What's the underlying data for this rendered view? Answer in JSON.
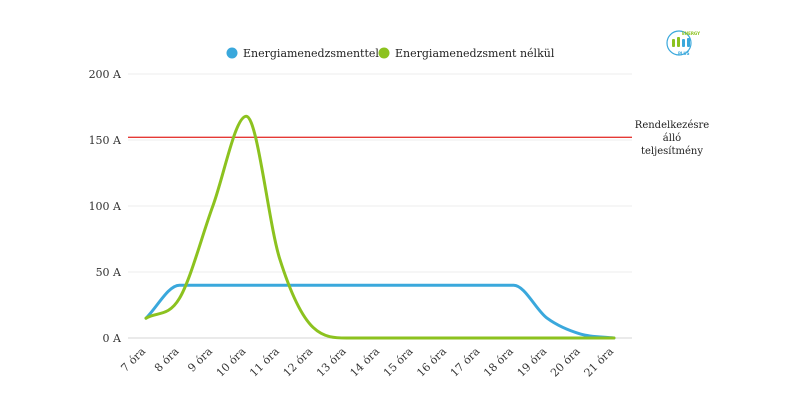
{
  "chart_data": {
    "type": "line",
    "title": "",
    "xlabel": "",
    "ylabel": "",
    "categories": [
      "7 óra",
      "8 óra",
      "9 óra",
      "10 óra",
      "11 óra",
      "12 óra",
      "13 óra",
      "14 óra",
      "15 óra",
      "16 óra",
      "17 óra",
      "18 óra",
      "19 óra",
      "20 óra",
      "21 óra"
    ],
    "yticks": [
      "0 A",
      "50 A",
      "100 A",
      "150 A",
      "200 A"
    ],
    "ylim": [
      0,
      200
    ],
    "grid": true,
    "legend_position": "top-center",
    "series": [
      {
        "name": "Energiamenedzsmenttel",
        "color": "#3aa8dc",
        "values": [
          15,
          40,
          40,
          40,
          40,
          40,
          40,
          40,
          40,
          40,
          40,
          40,
          15,
          3,
          0
        ]
      },
      {
        "name": "Energiamenedzsment nélkül",
        "color": "#8cc21f",
        "values": [
          15,
          30,
          100,
          168,
          60,
          8,
          0,
          0,
          0,
          0,
          0,
          0,
          0,
          0,
          0
        ]
      }
    ],
    "reference_line": {
      "value": 152,
      "color": "#e53935",
      "label_lines": [
        "Rendelkezésre",
        "álló",
        "teljesítmény"
      ]
    }
  },
  "logo": {
    "top_text": "ENERGY",
    "bottom_text": "PLUS",
    "color": "#3aa8dc",
    "accent": "#8cc21f"
  }
}
